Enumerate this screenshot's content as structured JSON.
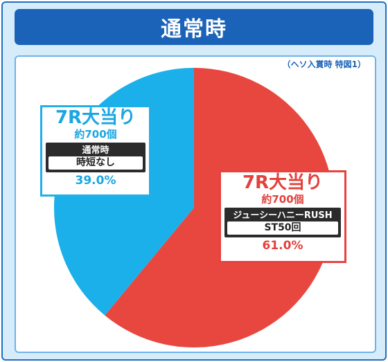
{
  "header": {
    "title": "通常時"
  },
  "note": "（ヘソ入賞時 特図1）",
  "chart_data": {
    "type": "pie",
    "title": "通常時",
    "series": [
      {
        "name": "7R大当り",
        "value": 61.0,
        "color": "#e8473f"
      },
      {
        "name": "7R大当り",
        "value": 39.0,
        "color": "#1bb0ea"
      }
    ]
  },
  "labels": {
    "blue": {
      "title": "7R大当り",
      "count": "約700個",
      "mode": "通常時",
      "detail": "時短なし",
      "pct": "39.0%"
    },
    "red": {
      "title": "7R大当り",
      "count": "約700個",
      "mode": "ジューシーハニーRUSH",
      "detail": "ST50回",
      "pct": "61.0%"
    }
  }
}
